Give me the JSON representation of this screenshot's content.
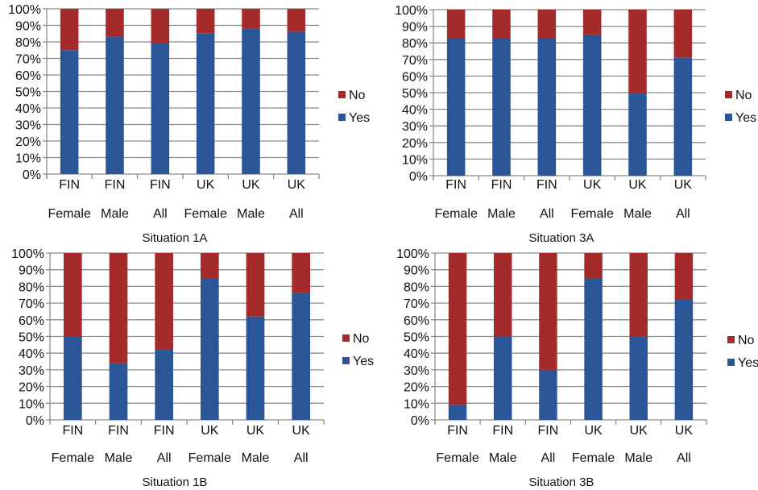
{
  "colors": {
    "yes": "#2a5597",
    "no": "#a52a2a",
    "grid": "#8c8c8c"
  },
  "chart_data": [
    {
      "type": "bar",
      "stacked": true,
      "title": "Situation 1A",
      "categories": [
        [
          "FIN",
          "Female"
        ],
        [
          "FIN",
          "Male"
        ],
        [
          "FIN",
          "All"
        ],
        [
          "UK",
          "Female"
        ],
        [
          "UK",
          "Male"
        ],
        [
          "UK",
          "All"
        ]
      ],
      "series": [
        {
          "name": "Yes",
          "values": [
            75,
            83,
            79,
            85,
            88,
            86
          ]
        },
        {
          "name": "No",
          "values": [
            25,
            17,
            21,
            15,
            12,
            14
          ]
        }
      ],
      "yticks": [
        "0%",
        "10%",
        "20%",
        "30%",
        "40%",
        "50%",
        "60%",
        "70%",
        "80%",
        "90%",
        "100%"
      ],
      "ylim": [
        0,
        100
      ],
      "grid": true,
      "legend": "right",
      "legend_order": [
        "No",
        "Yes"
      ]
    },
    {
      "type": "bar",
      "stacked": true,
      "title": "Situation 3A",
      "categories": [
        [
          "FIN",
          "Female"
        ],
        [
          "FIN",
          "Male"
        ],
        [
          "FIN",
          "All"
        ],
        [
          "UK",
          "Female"
        ],
        [
          "UK",
          "Male"
        ],
        [
          "UK",
          "All"
        ]
      ],
      "series": [
        {
          "name": "Yes",
          "values": [
            83,
            83,
            83,
            85,
            50,
            71
          ]
        },
        {
          "name": "No",
          "values": [
            17,
            17,
            17,
            15,
            50,
            29
          ]
        }
      ],
      "yticks": [
        "0%",
        "10%",
        "20%",
        "30%",
        "40%",
        "50%",
        "60%",
        "70%",
        "80%",
        "90%",
        "100%"
      ],
      "ylim": [
        0,
        100
      ],
      "grid": true,
      "legend": "right",
      "legend_order": [
        "No",
        "Yes"
      ]
    },
    {
      "type": "bar",
      "stacked": true,
      "title": "Situation 1B",
      "categories": [
        [
          "FIN",
          "Female"
        ],
        [
          "FIN",
          "Male"
        ],
        [
          "FIN",
          "All"
        ],
        [
          "UK",
          "Female"
        ],
        [
          "UK",
          "Male"
        ],
        [
          "UK",
          "All"
        ]
      ],
      "series": [
        {
          "name": "Yes",
          "values": [
            50,
            34,
            42,
            85,
            62,
            76
          ]
        },
        {
          "name": "No",
          "values": [
            50,
            66,
            58,
            15,
            38,
            24
          ]
        }
      ],
      "yticks": [
        "0%",
        "10%",
        "20%",
        "30%",
        "40%",
        "50%",
        "60%",
        "70%",
        "80%",
        "90%",
        "100%"
      ],
      "ylim": [
        0,
        100
      ],
      "grid": true,
      "legend": "right",
      "legend_order": [
        "No",
        "Yes"
      ]
    },
    {
      "type": "bar",
      "stacked": true,
      "title": "Situation 3B",
      "categories": [
        [
          "FIN",
          "Female"
        ],
        [
          "FIN",
          "Male"
        ],
        [
          "FIN",
          "All"
        ],
        [
          "UK",
          "Female"
        ],
        [
          "UK",
          "Male"
        ],
        [
          "UK",
          "All"
        ]
      ],
      "series": [
        {
          "name": "Yes",
          "values": [
            9,
            50,
            30,
            85,
            50,
            72
          ]
        },
        {
          "name": "No",
          "values": [
            91,
            50,
            70,
            15,
            50,
            28
          ]
        }
      ],
      "yticks": [
        "0%",
        "10%",
        "20%",
        "30%",
        "40%",
        "50%",
        "60%",
        "70%",
        "80%",
        "90%",
        "100%"
      ],
      "ylim": [
        0,
        100
      ],
      "grid": true,
      "legend": "right",
      "legend_order": [
        "No",
        "Yes"
      ]
    }
  ]
}
